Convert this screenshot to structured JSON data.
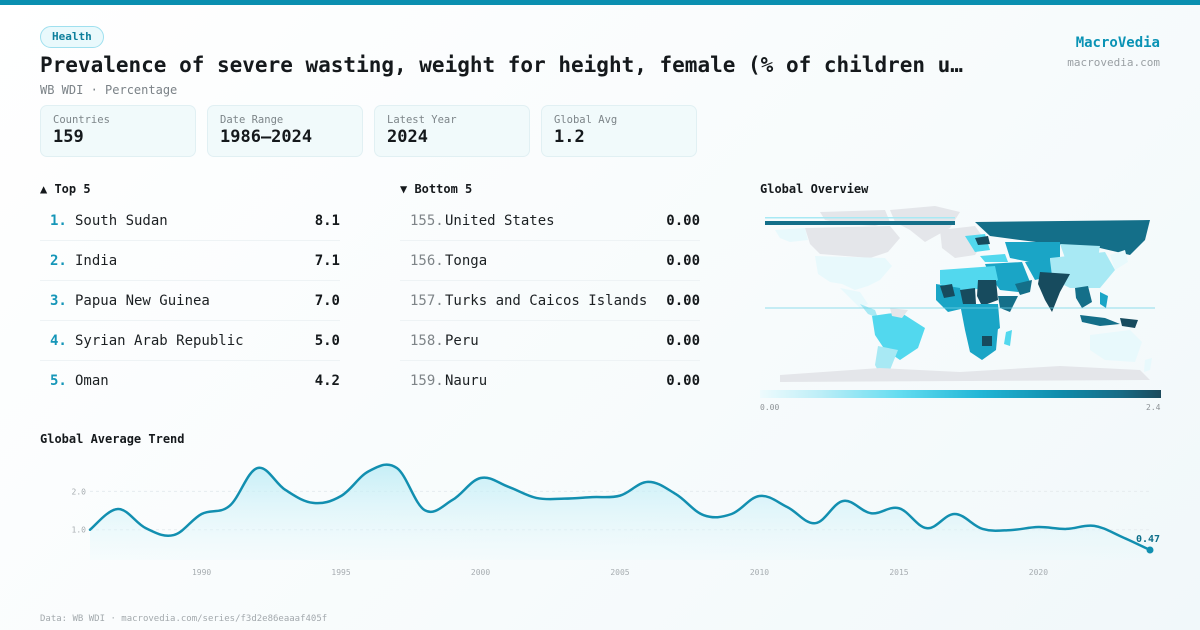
{
  "header": {
    "category_badge": "Health",
    "title": "Prevalence of severe wasting, weight for height, female (% of children u…",
    "subtitle": "WB WDI · Percentage",
    "brand_name": "MacroVedia",
    "brand_url": "macrovedia.com"
  },
  "stats": [
    {
      "label": "Countries",
      "value": "159"
    },
    {
      "label": "Date Range",
      "value": "1986–2024"
    },
    {
      "label": "Latest Year",
      "value": "2024"
    },
    {
      "label": "Global Avg",
      "value": "1.2"
    }
  ],
  "top5": {
    "title": "▲ Top 5",
    "items": [
      {
        "rank": "1.",
        "name": "South Sudan",
        "value": "8.1"
      },
      {
        "rank": "2.",
        "name": "India",
        "value": "7.1"
      },
      {
        "rank": "3.",
        "name": "Papua New Guinea",
        "value": "7.0"
      },
      {
        "rank": "4.",
        "name": "Syrian Arab Republic",
        "value": "5.0"
      },
      {
        "rank": "5.",
        "name": "Oman",
        "value": "4.2"
      }
    ]
  },
  "bottom5": {
    "title": "▼ Bottom 5",
    "items": [
      {
        "rank": "155.",
        "name": "United States",
        "value": "0.00"
      },
      {
        "rank": "156.",
        "name": "Tonga",
        "value": "0.00"
      },
      {
        "rank": "157.",
        "name": "Turks and Caicos Islands",
        "value": "0.00"
      },
      {
        "rank": "158.",
        "name": "Peru",
        "value": "0.00"
      },
      {
        "rank": "159.",
        "name": "Nauru",
        "value": "0.00"
      }
    ]
  },
  "map": {
    "title": "Global Overview",
    "legend_min": "0.00",
    "legend_max": "2.4",
    "colors": {
      "no_data": "#e4e6ea",
      "low": "#e8f9fc",
      "light": "#a8e9f4",
      "mid": "#52d8ee",
      "high": "#1aa5c6",
      "higher": "#146f89",
      "max": "#174b5e"
    }
  },
  "footer": {
    "text": "Data: WB WDI · macrovedia.com/series/f3d2e86eaaaf405f"
  },
  "colors": {
    "accent": "#0a8fb0",
    "line": "#128fb0",
    "fill": "#cdf0f7"
  },
  "chart_data": {
    "type": "area",
    "title": "Global Average Trend",
    "xlabel": "",
    "ylabel": "",
    "x": [
      1986,
      1987,
      1988,
      1989,
      1990,
      1991,
      1992,
      1993,
      1994,
      1995,
      1996,
      1997,
      1998,
      1999,
      2000,
      2001,
      2002,
      2003,
      2004,
      2005,
      2006,
      2007,
      2008,
      2009,
      2010,
      2011,
      2012,
      2013,
      2014,
      2015,
      2016,
      2017,
      2018,
      2019,
      2020,
      2021,
      2022,
      2023,
      2024
    ],
    "values": [
      1.0,
      1.54,
      1.04,
      0.86,
      1.41,
      1.62,
      2.61,
      2.04,
      1.7,
      1.88,
      2.53,
      2.61,
      1.51,
      1.78,
      2.35,
      2.12,
      1.83,
      1.81,
      1.85,
      1.89,
      2.25,
      1.93,
      1.38,
      1.41,
      1.88,
      1.59,
      1.17,
      1.75,
      1.43,
      1.56,
      1.04,
      1.41,
      1.02,
      0.99,
      1.07,
      1.02,
      1.1,
      0.81,
      0.47
    ],
    "y_ticks": [
      "1.0",
      "2.0"
    ],
    "x_ticks": [
      "1990",
      "1995",
      "2000",
      "2005",
      "2010",
      "2015",
      "2020"
    ],
    "ylim": [
      0,
      2.8
    ],
    "xlim": [
      1986,
      2024
    ],
    "grid": true,
    "last_value_label": "0.47"
  }
}
